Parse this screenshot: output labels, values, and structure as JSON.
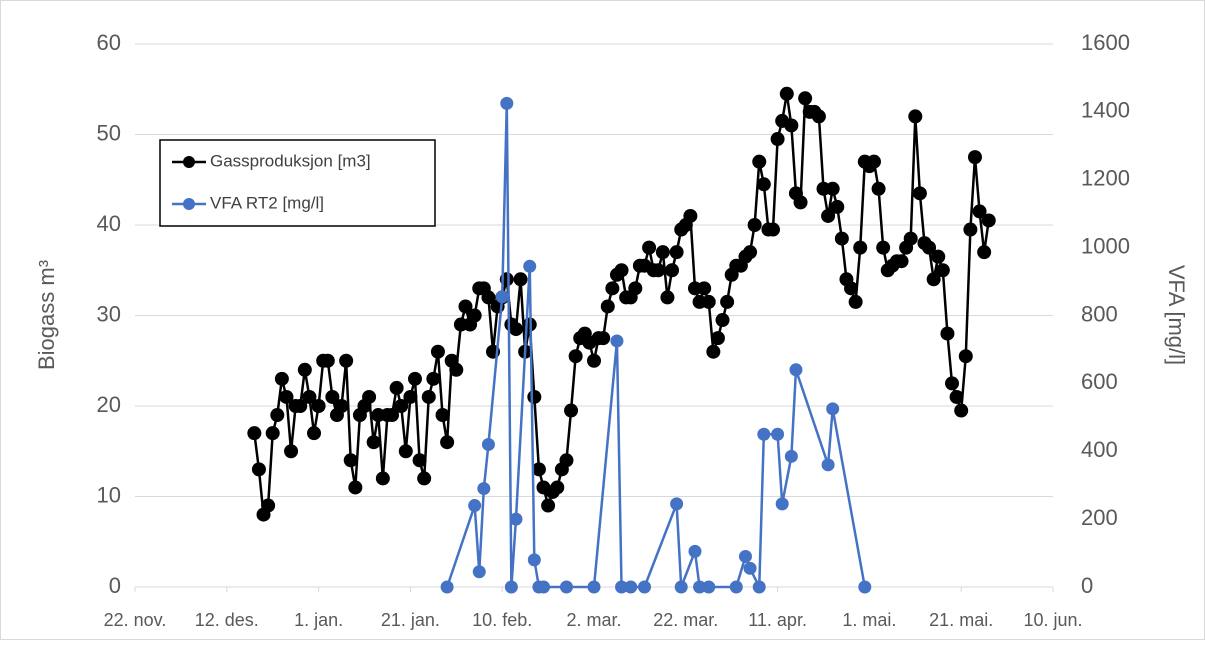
{
  "chart_data": {
    "type": "line",
    "ylabel": "Biogass m³",
    "y2label": "VFA [mg/l]",
    "xlim": [
      "11-22",
      "06-10"
    ],
    "xticks": [
      {
        "value": "11-22",
        "label": "22. nov."
      },
      {
        "value": "12-12",
        "label": "12. des."
      },
      {
        "value": "01-01",
        "label": "1. jan."
      },
      {
        "value": "01-21",
        "label": "21. jan."
      },
      {
        "value": "02-10",
        "label": "10. feb."
      },
      {
        "value": "03-02",
        "label": "2. mar."
      },
      {
        "value": "03-22",
        "label": "22. mar."
      },
      {
        "value": "04-11",
        "label": "11. apr."
      },
      {
        "value": "05-01",
        "label": "1. mai."
      },
      {
        "value": "05-21",
        "label": "21. mai."
      },
      {
        "value": "06-10",
        "label": "10. jun."
      }
    ],
    "ylim": [
      0,
      60
    ],
    "yticks": [
      0,
      10,
      20,
      30,
      40,
      50,
      60
    ],
    "y2lim": [
      0,
      1600
    ],
    "y2ticks": [
      0,
      200,
      400,
      600,
      800,
      1000,
      1200,
      1400,
      1600
    ],
    "grid": true,
    "legend": "upper left",
    "series": [
      {
        "name": "Gassproduksjon [m3]",
        "color": "#000000",
        "axis": "y",
        "x": [
          "12-18",
          "12-19",
          "12-20",
          "12-21",
          "12-22",
          "12-23",
          "12-24",
          "12-25",
          "12-26",
          "12-27",
          "12-28",
          "12-29",
          "12-30",
          "12-31",
          "01-01",
          "01-02",
          "01-03",
          "01-04",
          "01-05",
          "01-06",
          "01-07",
          "01-08",
          "01-09",
          "01-10",
          "01-11",
          "01-12",
          "01-13",
          "01-14",
          "01-15",
          "01-16",
          "01-17",
          "01-18",
          "01-19",
          "01-20",
          "01-21",
          "01-22",
          "01-23",
          "01-24",
          "01-25",
          "01-26",
          "01-27",
          "01-28",
          "01-29",
          "01-30",
          "01-31",
          "02-01",
          "02-02",
          "02-03",
          "02-04",
          "02-05",
          "02-06",
          "02-07",
          "02-08",
          "02-09",
          "02-10",
          "02-11",
          "02-12",
          "02-13",
          "02-14",
          "02-15",
          "02-16",
          "02-17",
          "02-18",
          "02-19",
          "02-20",
          "02-21",
          "02-22",
          "02-23",
          "02-24",
          "02-25",
          "02-26",
          "02-27",
          "02-28",
          "03-01",
          "03-02",
          "03-03",
          "03-04",
          "03-05",
          "03-06",
          "03-07",
          "03-08",
          "03-09",
          "03-10",
          "03-11",
          "03-12",
          "03-13",
          "03-14",
          "03-15",
          "03-16",
          "03-17",
          "03-18",
          "03-19",
          "03-20",
          "03-21",
          "03-22",
          "03-23",
          "03-24",
          "03-25",
          "03-26",
          "03-27",
          "03-28",
          "03-29",
          "03-30",
          "03-31",
          "04-01",
          "04-02",
          "04-03",
          "04-04",
          "04-05",
          "04-06",
          "04-07",
          "04-08",
          "04-09",
          "04-10",
          "04-11",
          "04-12",
          "04-13",
          "04-14",
          "04-15",
          "04-16",
          "04-17",
          "04-18",
          "04-19",
          "04-20",
          "04-21",
          "04-22",
          "04-23",
          "04-24",
          "04-25",
          "04-26",
          "04-27",
          "04-28",
          "04-29",
          "04-30",
          "05-01",
          "05-02",
          "05-03",
          "05-04",
          "05-05",
          "05-06",
          "05-07",
          "05-08",
          "05-09",
          "05-10",
          "05-11",
          "05-12",
          "05-13",
          "05-14",
          "05-15",
          "05-16",
          "05-17",
          "05-18",
          "05-19",
          "05-20",
          "05-21",
          "05-22",
          "05-23",
          "05-24",
          "05-25",
          "05-26",
          "05-27"
        ],
        "values": [
          17,
          13,
          8,
          9,
          17,
          19,
          23,
          21,
          15,
          20,
          20,
          24,
          21,
          17,
          20,
          25,
          25,
          21,
          19,
          20,
          25,
          14,
          11,
          19,
          20,
          21,
          16,
          19,
          12,
          19,
          19,
          22,
          20,
          15,
          21,
          23,
          14,
          12,
          21,
          23,
          26,
          19,
          16,
          25,
          24,
          29,
          31,
          29,
          30,
          33,
          33,
          32,
          26,
          31,
          32,
          34,
          29,
          28.5,
          34,
          26,
          29,
          21,
          13,
          11,
          9,
          10.5,
          11,
          13,
          14,
          19.5,
          25.5,
          27.5,
          28,
          27,
          25,
          27.5,
          27.5,
          31,
          33,
          34.5,
          35,
          32,
          32,
          33,
          35.5,
          35.5,
          37.5,
          35,
          35,
          37,
          32,
          35,
          37,
          39.5,
          40,
          41,
          33,
          31.5,
          33,
          31.5,
          26,
          27.5,
          29.5,
          31.5,
          34.5,
          35.5,
          35.5,
          36.5,
          37,
          40,
          47,
          44.5,
          39.5,
          39.5,
          49.5,
          51.5,
          54.5,
          51,
          43.5,
          42.5,
          54,
          52.5,
          52.5,
          52,
          44,
          41,
          44,
          42,
          38.5,
          34,
          33,
          31.5,
          37.5,
          47,
          46.5,
          47,
          44,
          37.5,
          35,
          35.5,
          36,
          36,
          37.5,
          38.5,
          52,
          43.5,
          38,
          37.5,
          34,
          36.5,
          35,
          28,
          22.5,
          21,
          19.5,
          25.5,
          39.5,
          47.5,
          41.5,
          37,
          40.5
        ]
      },
      {
        "name": "VFA RT2 [mg/l]",
        "color": "#4472c4",
        "axis": "y2",
        "x": [
          "01-29",
          "02-04",
          "02-05",
          "02-06",
          "02-07",
          "02-10",
          "02-11",
          "02-12",
          "02-13",
          "02-16",
          "02-17",
          "02-18",
          "02-19",
          "02-24",
          "03-02",
          "03-07",
          "03-08",
          "03-10",
          "03-13",
          "03-20",
          "03-21",
          "03-24",
          "03-25",
          "03-27",
          "04-02",
          "04-04",
          "04-05",
          "04-07",
          "04-08",
          "04-11",
          "04-12",
          "04-14",
          "04-15",
          "04-22",
          "04-23",
          "04-30"
        ],
        "values": [
          0,
          240,
          45,
          290,
          420,
          855,
          1425,
          0,
          200,
          945,
          80,
          0,
          0,
          0,
          0,
          725,
          0,
          0,
          0,
          245,
          0,
          105,
          0,
          0,
          0,
          90,
          55,
          0,
          450,
          450,
          245,
          385,
          640,
          360,
          525,
          0
        ]
      }
    ]
  }
}
